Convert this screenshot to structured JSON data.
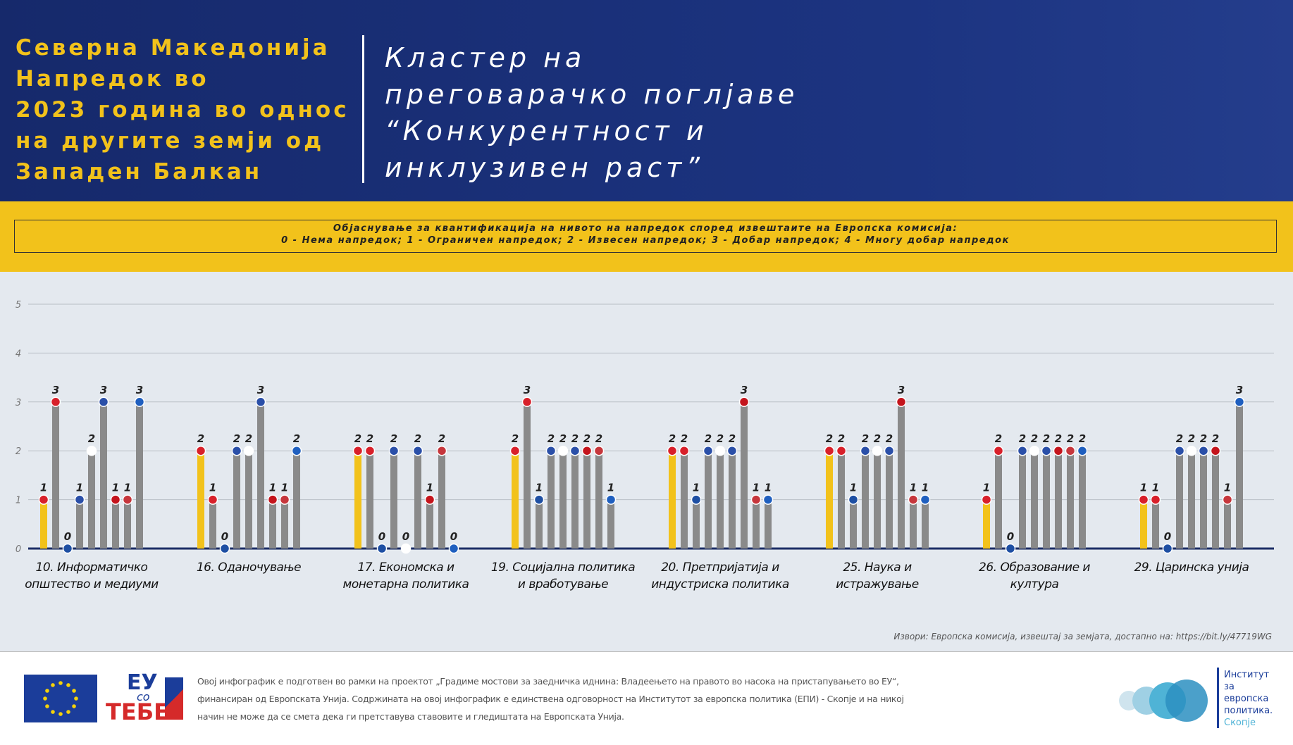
{
  "header": {
    "left_title": [
      "Северна Македонија",
      "Напредок во",
      "2023 година во однос",
      "на другите земји од",
      "Западен Балкан"
    ],
    "right_title": [
      "Кластер на",
      "преговарачко поглјаве",
      "“Конкурентност и",
      "инклузивен раст”"
    ]
  },
  "legend_box": {
    "line1": "Објаснување за квантификација  на нивото на напредок според извештаите на Европска комисија:",
    "line2": "0 - Нема напредок; 1 - Ограничен напредок; 2 - Извесен напредок; 3 - Добар напредок; 4 - Многу добар напредок"
  },
  "chart_data": {
    "type": "bar",
    "categories": [
      "10. Информатичко\nопштество и медиуми",
      "16. Оданочување",
      "17. Економска и\nмонетарна политика",
      "19. Социјална политика\nи вработување",
      "20. Претпријатија и\nиндустриска политика",
      "25. Наука и\nистражување",
      "26. Образование и култура",
      "29. Царинска унија"
    ],
    "series": [
      {
        "color": "#f2c21b",
        "values": [
          1,
          2,
          2,
          2,
          2,
          2,
          1,
          1
        ]
      },
      {
        "color": "#8a8a8a",
        "values": [
          3,
          1,
          2,
          3,
          2,
          2,
          2,
          1
        ]
      },
      {
        "color": "#8a8a8a",
        "values": [
          0,
          0,
          0,
          1,
          1,
          1,
          0,
          0
        ]
      },
      {
        "color": "#8a8a8a",
        "values": [
          1,
          2,
          2,
          2,
          2,
          2,
          2,
          2
        ]
      },
      {
        "color": "#8a8a8a",
        "values": [
          2,
          2,
          0,
          2,
          2,
          2,
          2,
          2
        ]
      },
      {
        "color": "#8a8a8a",
        "values": [
          3,
          3,
          2,
          2,
          2,
          2,
          2,
          2
        ]
      },
      {
        "color": "#8a8a8a",
        "values": [
          1,
          1,
          1,
          2,
          3,
          3,
          2,
          2
        ]
      },
      {
        "color": "#8a8a8a",
        "values": [
          1,
          1,
          2,
          2,
          1,
          1,
          2,
          1
        ]
      },
      {
        "color": "#8a8a8a",
        "values": [
          3,
          2,
          0,
          1,
          1,
          1,
          2,
          3
        ]
      }
    ],
    "ylim": [
      0,
      5
    ],
    "yticks": [
      0,
      1,
      2,
      3,
      4,
      5
    ],
    "grid": true
  },
  "source": "Извори: Европска комисија, извештај за земјата, достапно на: https://bit.ly/47719WG",
  "footer": {
    "text": [
      "Овој инфографик е подготвен во рамки на проектот „Градиме мостови за заедничка иднина: Владеењето на правото во насока на пристапувањето во ЕУ“,",
      "финансиран од Европската Унија. Содржината на овој инфографик е единствена одговорност на Институтот за европска политика (ЕПИ) - Скопје и на никој",
      "начин не може да се смета дека ги претставува ставовите и гледиштата на Европската Унија."
    ],
    "logo": [
      "ЕУ",
      "со",
      "ТЕБЕ"
    ],
    "institute": [
      "Институт",
      "за",
      "европска",
      "политика.",
      "Скопје"
    ]
  }
}
